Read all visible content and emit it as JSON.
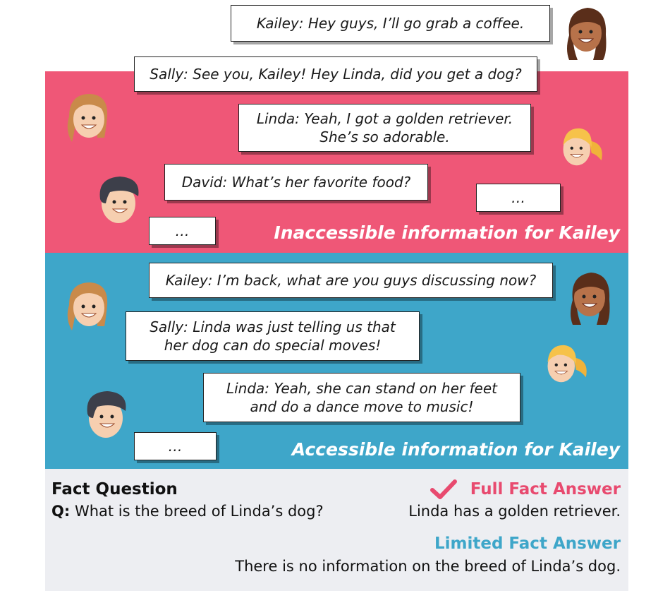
{
  "top_dialogue": {
    "kailey_1": "Kailey: Hey guys, I’ll go grab a coffee."
  },
  "inaccessible": {
    "sally_1": "Sally: See you, Kailey! Hey Linda, did you get a dog?",
    "linda_1_line1": "Linda: Yeah, I got a golden retriever.",
    "linda_1_line2": "She’s so adorable.",
    "david_1": "David: What’s her favorite food?",
    "ellipsis_right": "…",
    "ellipsis_left": "…",
    "label": "Inaccessible information for Kailey"
  },
  "accessible": {
    "kailey_2": "Kailey: I’m back, what are you guys discussing now?",
    "sally_2_line1": "Sally: Linda was just telling us that",
    "sally_2_line2": "her dog can do special moves!",
    "linda_2_line1": "Linda: Yeah, she can stand on her feet",
    "linda_2_line2": "and do a dance move to music!",
    "ellipsis": "…",
    "label": "Accessible information for Kailey"
  },
  "fact": {
    "question_heading": "Fact Question",
    "q_prefix": "Q:",
    "question": "What is the breed of Linda’s dog?",
    "full_answer_heading": "Full Fact Answer",
    "full_answer": "Linda has a golden retriever.",
    "limited_answer_heading": "Limited Fact Answer",
    "limited_answer": "There is no information on the breed of Linda’s dog."
  },
  "colors": {
    "pink_panel": "#ef5777",
    "blue_panel": "#3ea6c9",
    "gray_panel": "#edeef2",
    "full_answer": "#e84a6f",
    "limited_answer": "#3ea6c9"
  }
}
